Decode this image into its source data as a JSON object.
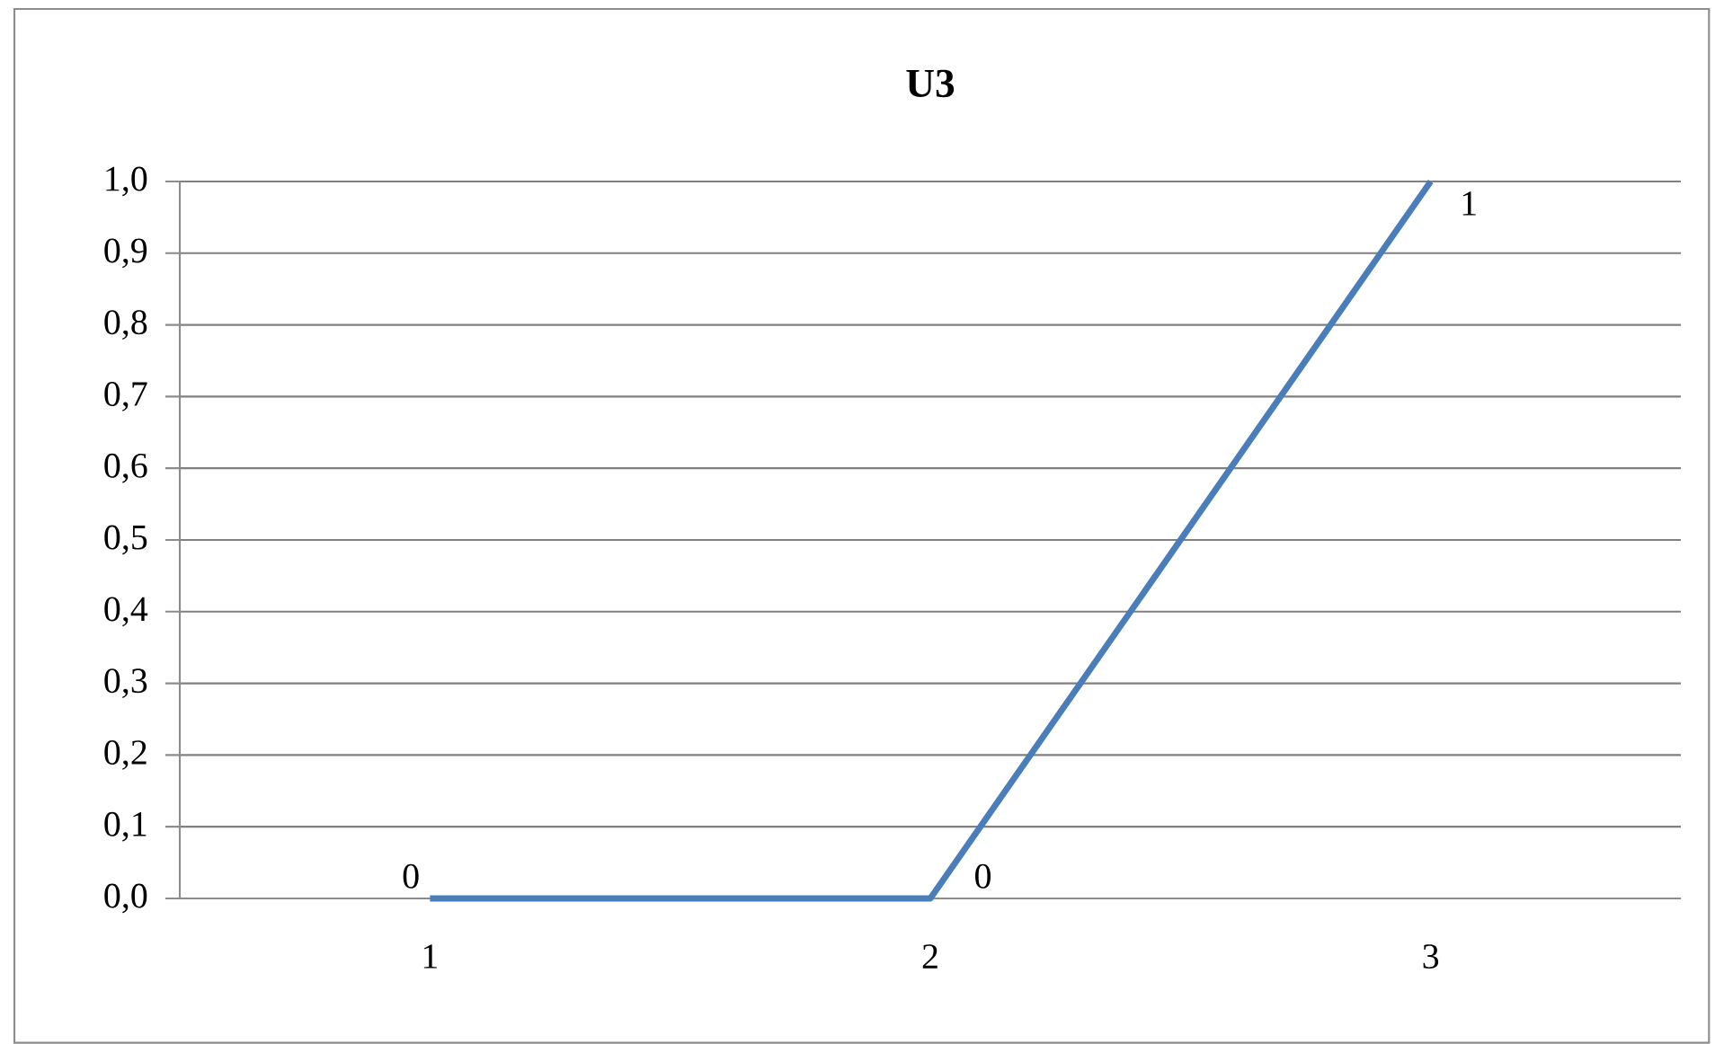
{
  "chart_data": {
    "type": "line",
    "title": "U3",
    "categories": [
      "1",
      "2",
      "3"
    ],
    "series": [
      {
        "color": "#4a7ebb",
        "values": [
          0,
          0,
          1
        ]
      }
    ],
    "ylim": [
      0,
      1
    ],
    "yticks": [
      {
        "value": 0,
        "label": "0,0"
      },
      {
        "value": 0.1,
        "label": "0,1"
      },
      {
        "value": 0.2,
        "label": "0,2"
      },
      {
        "value": 0.3,
        "label": "0,3"
      },
      {
        "value": 0.4,
        "label": "0,4"
      },
      {
        "value": 0.5,
        "label": "0,5"
      },
      {
        "value": 0.6,
        "label": "0,6"
      },
      {
        "value": 0.7,
        "label": "0,7"
      },
      {
        "value": 0.8,
        "label": "0,8"
      },
      {
        "value": 0.9,
        "label": "0,9"
      },
      {
        "value": 1,
        "label": "1,0"
      }
    ],
    "grid": "y",
    "data_labels": true
  }
}
